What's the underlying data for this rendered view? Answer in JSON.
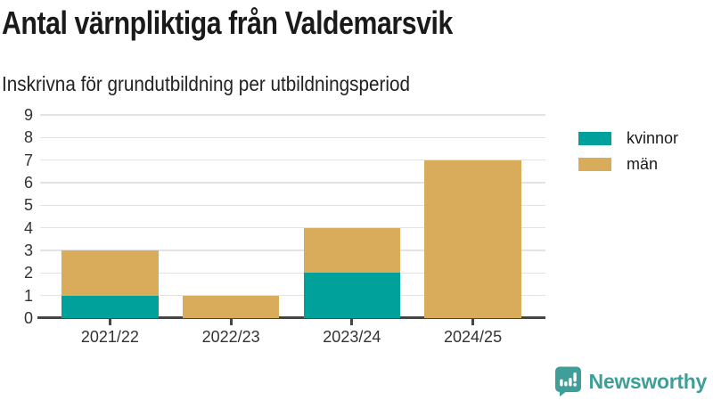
{
  "chart_data": {
    "type": "bar",
    "stacked": true,
    "title": "Antal värnpliktiga från Valdemarsvik",
    "subtitle": "Inskrivna för grundutbildning per utbildningsperiod",
    "categories": [
      "2021/22",
      "2022/23",
      "2023/24",
      "2024/25"
    ],
    "series": [
      {
        "name": "kvinnor",
        "color": "#00a19a",
        "values": [
          1,
          0,
          2,
          0
        ]
      },
      {
        "name": "män",
        "color": "#d9ac5b",
        "values": [
          2,
          1,
          2,
          7
        ]
      }
    ],
    "totals": [
      3,
      1,
      4,
      7
    ],
    "ylim": [
      0,
      9
    ],
    "yticks": [
      0,
      1,
      2,
      3,
      4,
      5,
      6,
      7,
      8,
      9
    ],
    "xlabel": "",
    "ylabel": "",
    "grid": true,
    "legend_position": "right"
  },
  "legend": {
    "items": [
      {
        "label": "kvinnor",
        "color": "#00a19a"
      },
      {
        "label": "män",
        "color": "#d9ac5b"
      }
    ]
  },
  "colors": {
    "grid": "#e3e3e3",
    "axis": "#454545",
    "text": "#333333",
    "brand_teal": "#3f9e98"
  },
  "footer": {
    "brand": "Newsworthy"
  }
}
